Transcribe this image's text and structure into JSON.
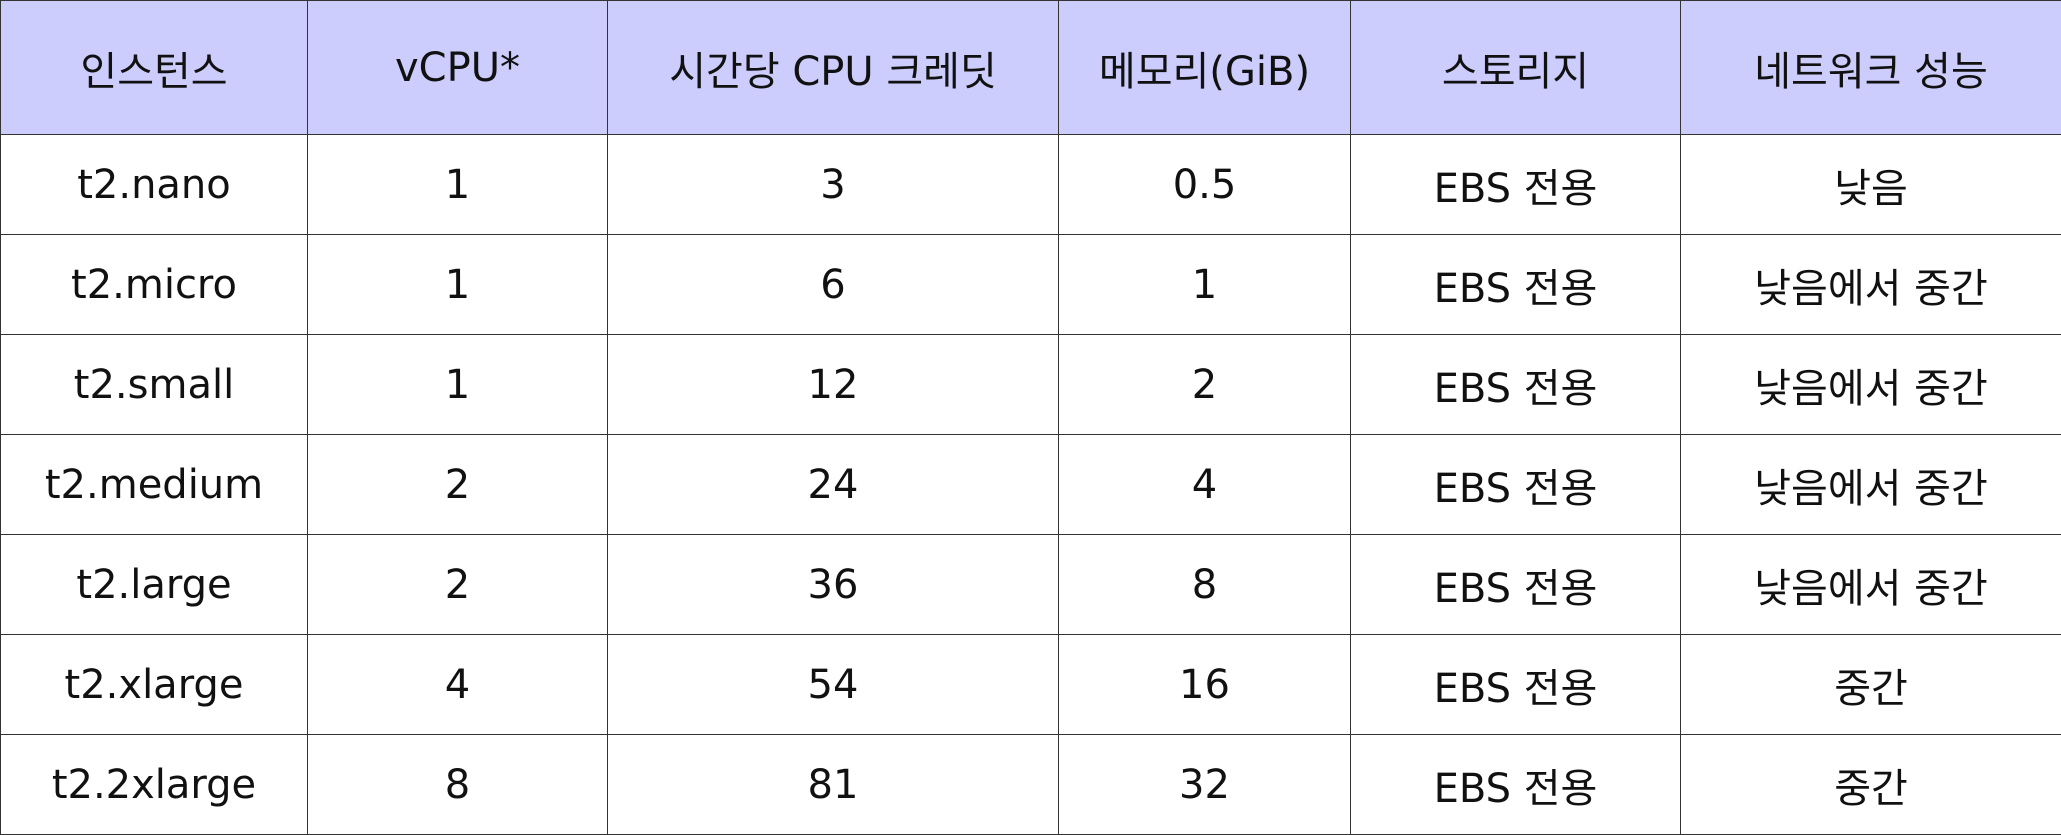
{
  "table": {
    "headers": [
      "인스턴스",
      "vCPU*",
      "시간당 CPU 크레딧",
      "메모리(GiB)",
      "스토리지",
      "네트워크 성능"
    ],
    "rows": [
      [
        "t2.nano",
        "1",
        "3",
        "0.5",
        "EBS 전용",
        "낮음"
      ],
      [
        "t2.micro",
        "1",
        "6",
        "1",
        "EBS 전용",
        "낮음에서 중간"
      ],
      [
        "t2.small",
        "1",
        "12",
        "2",
        "EBS 전용",
        "낮음에서 중간"
      ],
      [
        "t2.medium",
        "2",
        "24",
        "4",
        "EBS 전용",
        "낮음에서 중간"
      ],
      [
        "t2.large",
        "2",
        "36",
        "8",
        "EBS 전용",
        "낮음에서 중간"
      ],
      [
        "t2.xlarge",
        "4",
        "54",
        "16",
        "EBS 전용",
        "중간"
      ],
      [
        "t2.2xlarge",
        "8",
        "81",
        "32",
        "EBS 전용",
        "중간"
      ]
    ]
  },
  "colors": {
    "header_background": "#cccdfd",
    "border": "#333333",
    "text": "#111111"
  }
}
